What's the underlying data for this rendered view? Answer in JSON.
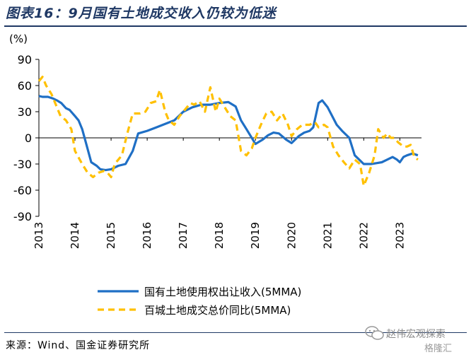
{
  "header": {
    "title": "图表16：9月国有土地成交收入仍较为低迷"
  },
  "footer": {
    "source": "来源：Wind、国金证券研究所"
  },
  "watermark": {
    "line1": "赵伟宏观探索",
    "line2": "格隆汇"
  },
  "colors": {
    "title": "#1f3864",
    "series1": "#1f6fc5",
    "series2": "#ffc000"
  },
  "chart_data": {
    "type": "line",
    "unit_label": "(%)",
    "ylim": [
      -90,
      90
    ],
    "yticks": [
      -90,
      -60,
      -30,
      0,
      30,
      60,
      90
    ],
    "xlim": [
      2013.0,
      2023.6
    ],
    "xticks": [
      "2013",
      "2014",
      "2015",
      "2016",
      "2017",
      "2018",
      "2019",
      "2020",
      "2021",
      "2022",
      "2023"
    ],
    "grid": false,
    "legend_position": "bottom",
    "series": [
      {
        "name": "国有土地使用权出让收入(5MMA)",
        "style": "solid",
        "color": "#1f6fc5",
        "x": [
          2013.0,
          2013.1,
          2013.25,
          2013.4,
          2013.5,
          2013.62,
          2013.75,
          2013.85,
          2014.0,
          2014.1,
          2014.2,
          2014.3,
          2014.45,
          2014.6,
          2014.7,
          2014.85,
          2015.0,
          2015.2,
          2015.4,
          2015.6,
          2015.75,
          2016.0,
          2016.25,
          2016.5,
          2016.75,
          2017.0,
          2017.25,
          2017.5,
          2017.75,
          2018.0,
          2018.25,
          2018.45,
          2018.6,
          2018.75,
          2019.0,
          2019.2,
          2019.35,
          2019.5,
          2019.65,
          2019.85,
          2020.0,
          2020.2,
          2020.35,
          2020.5,
          2020.6,
          2020.75,
          2020.85,
          2021.0,
          2021.25,
          2021.4,
          2021.6,
          2021.75,
          2022.0,
          2022.2,
          2022.35,
          2022.5,
          2022.65,
          2022.8,
          2022.92,
          2023.0,
          2023.1,
          2023.2,
          2023.35,
          2023.5
        ],
        "values": [
          48,
          47,
          47,
          45,
          43,
          40,
          34,
          32,
          25,
          20,
          10,
          -5,
          -28,
          -32,
          -36,
          -37,
          -36,
          -32,
          -30,
          -15,
          5,
          8,
          12,
          16,
          20,
          30,
          35,
          38,
          38,
          40,
          41,
          36,
          20,
          10,
          -7,
          -2,
          3,
          6,
          5,
          -2,
          -6,
          2,
          6,
          8,
          12,
          40,
          43,
          35,
          15,
          8,
          0,
          -20,
          -30,
          -30,
          -29,
          -28,
          -25,
          -22,
          -25,
          -28,
          -22,
          -20,
          -18,
          -20
        ]
      },
      {
        "name": "百城土地成交总价同比(5MMA)",
        "style": "dashed",
        "color": "#ffc000",
        "x": [
          2013.0,
          2013.1,
          2013.2,
          2013.35,
          2013.5,
          2013.6,
          2013.75,
          2013.9,
          2014.0,
          2014.2,
          2014.35,
          2014.5,
          2014.65,
          2014.8,
          2014.9,
          2015.0,
          2015.1,
          2015.3,
          2015.45,
          2015.6,
          2015.8,
          2015.95,
          2016.1,
          2016.25,
          2016.35,
          2016.5,
          2016.6,
          2016.75,
          2016.9,
          2017.0,
          2017.1,
          2017.2,
          2017.3,
          2017.45,
          2017.6,
          2017.75,
          2017.9,
          2018.0,
          2018.15,
          2018.3,
          2018.45,
          2018.6,
          2018.75,
          2018.9,
          2019.0,
          2019.15,
          2019.3,
          2019.45,
          2019.6,
          2019.75,
          2019.9,
          2020.0,
          2020.15,
          2020.3,
          2020.5,
          2020.65,
          2020.75,
          2020.9,
          2021.0,
          2021.15,
          2021.3,
          2021.45,
          2021.6,
          2021.75,
          2021.9,
          2022.0,
          2022.15,
          2022.3,
          2022.4,
          2022.55,
          2022.65,
          2022.75,
          2022.85,
          2022.95,
          2023.1,
          2023.2,
          2023.3,
          2023.4,
          2023.5
        ],
        "values": [
          65,
          70,
          60,
          50,
          35,
          25,
          20,
          10,
          -15,
          -30,
          -40,
          -45,
          -40,
          -38,
          -40,
          -45,
          -30,
          -20,
          5,
          28,
          28,
          30,
          40,
          42,
          55,
          30,
          20,
          15,
          25,
          30,
          35,
          40,
          38,
          42,
          30,
          58,
          30,
          45,
          35,
          25,
          20,
          -15,
          -20,
          -12,
          0,
          15,
          28,
          30,
          20,
          28,
          15,
          2,
          10,
          15,
          15,
          18,
          12,
          15,
          12,
          -10,
          -20,
          -28,
          -35,
          -25,
          -30,
          -55,
          -40,
          -20,
          10,
          0,
          5,
          0,
          0,
          -5,
          -10,
          -10,
          -8,
          -22,
          -25
        ]
      }
    ]
  }
}
